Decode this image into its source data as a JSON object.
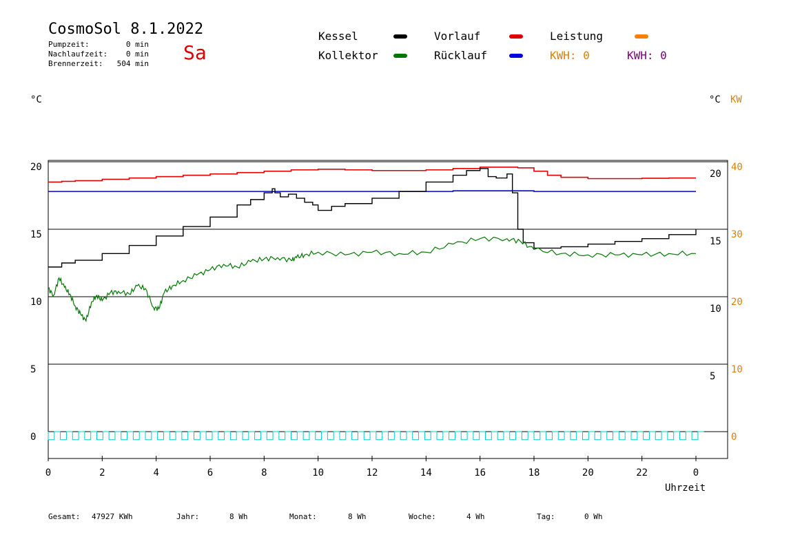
{
  "header": {
    "title": "CosmoSol 8.1.2022",
    "weekday": "Sa",
    "pump_label": "Pumpzeit:",
    "pump_value": "0 min",
    "run_label": "Nachlaufzeit:",
    "run_value": "0 min",
    "burner_label": "Brennerzeit:",
    "burner_value": "504 min"
  },
  "legend": {
    "kessel": "Kessel",
    "kollektor": "Kollektor",
    "vorlauf": "Vorlauf",
    "ruecklauf": "Rücklauf",
    "leistung": "Leistung",
    "kwh1": "KWH: 0",
    "kwh2": "KWH: 0"
  },
  "colors": {
    "kessel": "#000000",
    "kollektor": "#007700",
    "vorlauf": "#dd0000",
    "ruecklauf": "#0000dd",
    "leistung": "#ff8000",
    "kwh2": "#800080",
    "pump": "#00cccc",
    "axis_right_kw": "#e08000"
  },
  "axes": {
    "left_unit": "°C",
    "right_unit": "°C",
    "right_kw_unit": "KW",
    "xlabel": "Uhrzeit"
  },
  "footer": {
    "gesamt_label": "Gesamt:",
    "gesamt_value": "47927 KWh",
    "jahr_label": "Jahr:",
    "jahr_value": "8 Wh",
    "monat_label": "Monat:",
    "monat_value": "8 Wh",
    "woche_label": "Woche:",
    "woche_value": "4 Wh",
    "tag_label": "Tag:",
    "tag_value": "0 Wh"
  },
  "chart_data": {
    "type": "line",
    "x_ticks": [
      "0",
      "2",
      "4",
      "6",
      "8",
      "10",
      "12",
      "14",
      "16",
      "18",
      "20",
      "22",
      "0"
    ],
    "x_tick_hours": [
      0,
      2,
      4,
      6,
      8,
      10,
      12,
      14,
      16,
      18,
      20,
      22,
      24
    ],
    "xlim": [
      0,
      24
    ],
    "ylim": [
      -1.6,
      20.2
    ],
    "y_left_ticks": [
      "20",
      "15",
      "10",
      "5",
      "0"
    ],
    "y_left_values": [
      20,
      15,
      10,
      5,
      0
    ],
    "y_right_ticks": [
      "20",
      "15",
      "10",
      "5"
    ],
    "y_right_values": [
      20,
      15,
      10,
      5
    ],
    "y_kw_ticks": [
      "40",
      "30",
      "20",
      "10",
      "0"
    ],
    "y_kw_values": [
      20,
      15,
      10,
      5,
      0
    ],
    "gridlines": [
      20,
      15,
      10,
      5,
      0
    ],
    "series": [
      {
        "name": "Vorlauf",
        "color_key": "vorlauf",
        "x": [
          0,
          0.5,
          1,
          2,
          3,
          4,
          5,
          6,
          7,
          8,
          9,
          10,
          11,
          12,
          13,
          14,
          15,
          16,
          17,
          17.4,
          18,
          18.5,
          19,
          20,
          21,
          22,
          23,
          24
        ],
        "y": [
          18.5,
          18.55,
          18.6,
          18.7,
          18.8,
          18.9,
          19.0,
          19.1,
          19.2,
          19.3,
          19.4,
          19.45,
          19.4,
          19.35,
          19.35,
          19.4,
          19.5,
          19.6,
          19.6,
          19.55,
          19.3,
          19.0,
          18.85,
          18.75,
          18.75,
          18.78,
          18.8,
          18.8
        ]
      },
      {
        "name": "Rücklauf",
        "color_key": "ruecklauf",
        "x": [
          0,
          6,
          12,
          15,
          16,
          17,
          18,
          24
        ],
        "y": [
          17.8,
          17.8,
          17.8,
          17.85,
          17.85,
          17.85,
          17.8,
          17.8
        ]
      },
      {
        "name": "Kessel",
        "color_key": "kessel",
        "x": [
          0,
          0.5,
          1,
          2,
          3,
          4,
          5,
          6,
          7,
          7.5,
          8,
          8.3,
          8.4,
          8.6,
          8.9,
          9.2,
          9.5,
          9.8,
          10,
          10.5,
          11,
          12,
          13,
          14,
          15,
          15.5,
          16,
          16.3,
          16.6,
          17,
          17.1,
          17.2,
          17.4,
          17.6,
          18,
          19,
          20,
          21,
          22,
          23,
          24
        ],
        "y": [
          12.2,
          12.5,
          12.7,
          13.2,
          13.8,
          14.5,
          15.2,
          15.9,
          16.8,
          17.2,
          17.7,
          18.0,
          17.7,
          17.4,
          17.6,
          17.3,
          17.0,
          16.8,
          16.4,
          16.7,
          16.9,
          17.3,
          17.8,
          18.5,
          19.0,
          19.35,
          19.5,
          18.9,
          18.8,
          19.1,
          19.1,
          17.7,
          15.0,
          14.0,
          13.6,
          13.7,
          13.9,
          14.1,
          14.3,
          14.6,
          15.0
        ]
      },
      {
        "name": "Kollektor",
        "color_key": "kollektor",
        "x": [
          0,
          0.2,
          0.4,
          0.6,
          0.8,
          1,
          1.2,
          1.4,
          1.6,
          1.8,
          2,
          2.3,
          2.6,
          3,
          3.3,
          3.6,
          3.9,
          4.1,
          4.3,
          4.6,
          5,
          5.5,
          6,
          6.5,
          7,
          7.5,
          8,
          8.5,
          9,
          9.2,
          9.5,
          10,
          11,
          12,
          13,
          14,
          15,
          16,
          17,
          17.5,
          18,
          19,
          20,
          21,
          22,
          23,
          24
        ],
        "y": [
          10.6,
          10.1,
          11.4,
          10.7,
          10.2,
          9.3,
          8.7,
          8.2,
          9.6,
          10.1,
          9.7,
          10.3,
          10.4,
          10.2,
          10.8,
          10.6,
          9.2,
          9.1,
          10.3,
          10.8,
          11.2,
          11.6,
          12.0,
          12.4,
          12.2,
          12.6,
          12.8,
          12.9,
          12.7,
          12.9,
          13.1,
          13.3,
          13.1,
          13.3,
          13.2,
          13.3,
          13.9,
          14.3,
          14.3,
          14.1,
          13.5,
          13.2,
          13.1,
          13.1,
          13.1,
          13.2,
          13.2
        ]
      }
    ],
    "pump_pulse": {
      "name": "Pumpe",
      "color_key": "pump",
      "low": -0.6,
      "high": 0,
      "period_h": 0.45
    }
  }
}
